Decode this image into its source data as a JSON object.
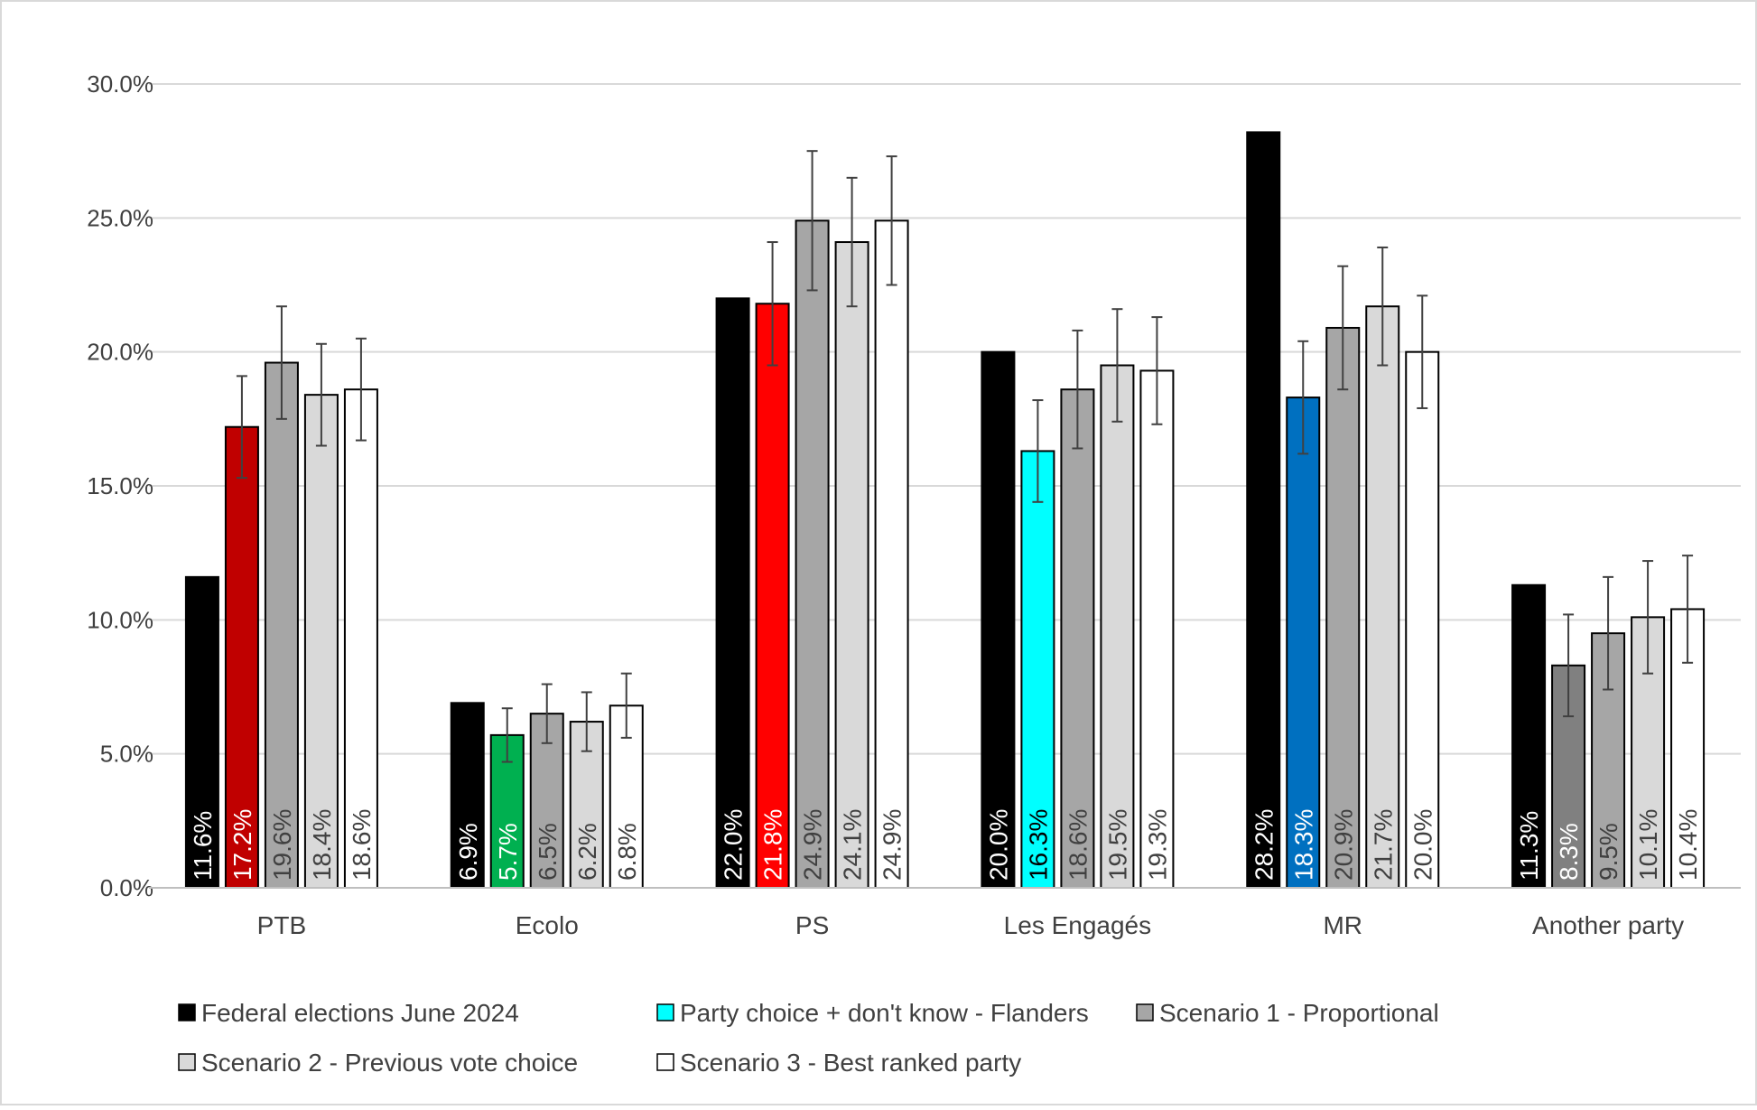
{
  "chart_data": {
    "type": "bar",
    "title": "",
    "xlabel": "",
    "ylabel": "",
    "ylim": [
      0,
      30
    ],
    "y_ticks": [
      "0.0%",
      "5.0%",
      "10.0%",
      "15.0%",
      "20.0%",
      "25.0%",
      "30.0%"
    ],
    "y_tick_values": [
      0,
      5,
      10,
      15,
      20,
      25,
      30
    ],
    "grid": true,
    "legend_position": "bottom",
    "categories": [
      "PTB",
      "Ecolo",
      "PS",
      "Les Engagés",
      "MR",
      "Another party"
    ],
    "series": [
      {
        "name": "Federal elections June 2024",
        "color": "#000000",
        "values": [
          11.6,
          6.9,
          22.0,
          20.0,
          28.2,
          11.3
        ],
        "labels": [
          "11.6%",
          "6.9%",
          "22.0%",
          "20.0%",
          "28.2%",
          "11.3%"
        ],
        "error": null
      },
      {
        "name": "Party choice + don't know - Flanders",
        "color": "#00FFFF",
        "point_colors": [
          "#C00000",
          "#00B050",
          "#FF0000",
          "#00FFFF",
          "#0070C0",
          "#808080"
        ],
        "label_colors": [
          "#FFFFFF",
          "#FFFFFF",
          "#FFFFFF",
          "#000000",
          "#FFFFFF",
          "#FFFFFF"
        ],
        "values": [
          17.2,
          5.7,
          21.8,
          16.3,
          18.3,
          8.3
        ],
        "labels": [
          "17.2%",
          "5.7%",
          "21.8%",
          "16.3%",
          "18.3%",
          "8.3%"
        ],
        "error": [
          1.9,
          1.0,
          2.3,
          1.9,
          2.1,
          1.9
        ]
      },
      {
        "name": "Scenario 1 - Proportional",
        "color": "#A6A6A6",
        "values": [
          19.6,
          6.5,
          24.9,
          18.6,
          20.9,
          9.5
        ],
        "labels": [
          "19.6%",
          "6.5%",
          "24.9%",
          "18.6%",
          "20.9%",
          "9.5%"
        ],
        "error": [
          2.1,
          1.1,
          2.6,
          2.2,
          2.3,
          2.1
        ]
      },
      {
        "name": "Scenario 2 - Previous vote choice",
        "color": "#D9D9D9",
        "values": [
          18.4,
          6.2,
          24.1,
          19.5,
          21.7,
          10.1
        ],
        "labels": [
          "18.4%",
          "6.2%",
          "24.1%",
          "19.5%",
          "21.7%",
          "10.1%"
        ],
        "error": [
          1.9,
          1.1,
          2.4,
          2.1,
          2.2,
          2.1
        ]
      },
      {
        "name": "Scenario 3 - Best ranked party",
        "color": "#FFFFFF",
        "values": [
          18.6,
          6.8,
          24.9,
          19.3,
          20.0,
          10.4
        ],
        "labels": [
          "18.6%",
          "6.8%",
          "24.9%",
          "19.3%",
          "20.0%",
          "10.4%"
        ],
        "error": [
          1.9,
          1.2,
          2.4,
          2.0,
          2.1,
          2.0
        ]
      }
    ]
  }
}
